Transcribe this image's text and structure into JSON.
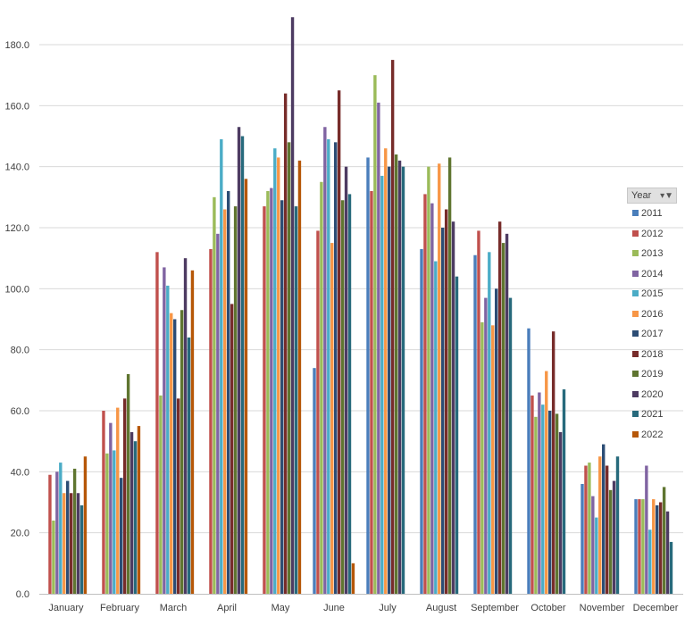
{
  "chart_data": {
    "type": "bar",
    "categories": [
      "January",
      "February",
      "March",
      "April",
      "May",
      "June",
      "July",
      "August",
      "September",
      "October",
      "November",
      "December"
    ],
    "ylim": [
      0,
      190
    ],
    "yticks": [
      "0.0",
      "20.0",
      "40.0",
      "60.0",
      "80.0",
      "100.0",
      "120.0",
      "140.0",
      "160.0",
      "180.0"
    ],
    "ytick_values": [
      0,
      20,
      40,
      60,
      80,
      100,
      120,
      140,
      160,
      180
    ],
    "grid": true,
    "legend_position": "right",
    "legend_title": "Year",
    "series": [
      {
        "name": "2011",
        "color": "#4a7ebb",
        "values": [
          0,
          0,
          0,
          0,
          0,
          74,
          143,
          113,
          111,
          87,
          36,
          31
        ]
      },
      {
        "name": "2012",
        "color": "#c0504d",
        "values": [
          39,
          60,
          112,
          113,
          127,
          119,
          132,
          131,
          119,
          65,
          42,
          31
        ]
      },
      {
        "name": "2013",
        "color": "#9bbb59",
        "values": [
          24,
          46,
          65,
          130,
          132,
          135,
          170,
          140,
          89,
          58,
          43,
          31
        ]
      },
      {
        "name": "2014",
        "color": "#8064a2",
        "values": [
          40,
          56,
          107,
          118,
          133,
          153,
          161,
          128,
          97,
          66,
          32,
          42
        ]
      },
      {
        "name": "2015",
        "color": "#4bacc6",
        "values": [
          43,
          47,
          101,
          149,
          146,
          149,
          137,
          109,
          112,
          62,
          25,
          21
        ]
      },
      {
        "name": "2016",
        "color": "#f79646",
        "values": [
          33,
          61,
          92,
          126,
          143,
          115,
          146,
          141,
          88,
          73,
          45,
          31
        ]
      },
      {
        "name": "2017",
        "color": "#2c4d75",
        "values": [
          37,
          38,
          90,
          132,
          129,
          148,
          140,
          120,
          100,
          60,
          49,
          29
        ]
      },
      {
        "name": "2018",
        "color": "#772c2a",
        "values": [
          33,
          64,
          64,
          95,
          164,
          165,
          175,
          126,
          122,
          86,
          42,
          30
        ]
      },
      {
        "name": "2019",
        "color": "#5f7530",
        "values": [
          41,
          72,
          93,
          127,
          148,
          129,
          144,
          143,
          115,
          59,
          34,
          35
        ]
      },
      {
        "name": "2020",
        "color": "#4d3b62",
        "values": [
          33,
          53,
          110,
          153,
          189,
          140,
          142,
          122,
          118,
          53,
          37,
          27
        ]
      },
      {
        "name": "2021",
        "color": "#276a7c",
        "values": [
          29,
          50,
          84,
          150,
          127,
          131,
          140,
          104,
          97,
          67,
          45,
          17
        ]
      },
      {
        "name": "2022",
        "color": "#b65708",
        "values": [
          45,
          55,
          106,
          136,
          142,
          10,
          0,
          0,
          0,
          0,
          0,
          0
        ]
      }
    ]
  }
}
